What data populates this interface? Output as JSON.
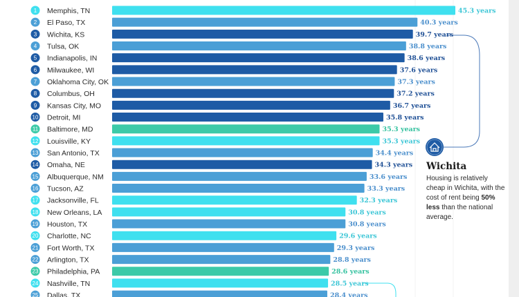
{
  "chart_data": {
    "type": "bar",
    "orientation": "horizontal",
    "value_suffix": " years",
    "colors": {
      "cyan": "#3fe0ef",
      "mid_blue": "#4b9fd6",
      "dark_blue": "#1e5ba5",
      "teal": "#3ccaa8"
    },
    "rows": [
      {
        "rank": "1",
        "city": "Memphis, TN",
        "value": 45.3,
        "label": "45.3 years",
        "color": "cyan"
      },
      {
        "rank": "2",
        "city": "El Paso, TX",
        "value": 40.3,
        "label": "40.3 years",
        "color": "mid_blue"
      },
      {
        "rank": "3",
        "city": "Wichita, KS",
        "value": 39.7,
        "label": "39.7 years",
        "color": "dark_blue"
      },
      {
        "rank": "4",
        "city": "Tulsa, OK",
        "value": 38.8,
        "label": "38.8 years",
        "color": "mid_blue"
      },
      {
        "rank": "5",
        "city": "Indianapolis, IN",
        "value": 38.6,
        "label": "38.6 years",
        "color": "dark_blue"
      },
      {
        "rank": "6",
        "city": "Milwaukee, WI",
        "value": 37.6,
        "label": "37.6 years",
        "color": "dark_blue"
      },
      {
        "rank": "7",
        "city": "Oklahoma City, OK",
        "value": 37.3,
        "label": "37.3 years",
        "color": "mid_blue"
      },
      {
        "rank": "8",
        "city": "Columbus, OH",
        "value": 37.2,
        "label": "37.2 years",
        "color": "dark_blue"
      },
      {
        "rank": "9",
        "city": "Kansas City, MO",
        "value": 36.7,
        "label": "36.7 years",
        "color": "dark_blue"
      },
      {
        "rank": "10",
        "city": "Detroit, MI",
        "value": 35.8,
        "label": "35.8 years",
        "color": "dark_blue"
      },
      {
        "rank": "11",
        "city": "Baltimore, MD",
        "value": 35.3,
        "label": "35.3 years",
        "color": "teal"
      },
      {
        "rank": "12",
        "city": "Louisville, KY",
        "value": 35.3,
        "label": "35.3 years",
        "color": "cyan"
      },
      {
        "rank": "13",
        "city": "San Antonio, TX",
        "value": 34.4,
        "label": "34.4 years",
        "color": "mid_blue"
      },
      {
        "rank": "14",
        "city": "Omaha, NE",
        "value": 34.3,
        "label": "34.3 years",
        "color": "dark_blue"
      },
      {
        "rank": "15",
        "city": "Albuquerque, NM",
        "value": 33.6,
        "label": "33.6 years",
        "color": "mid_blue"
      },
      {
        "rank": "16",
        "city": "Tucson, AZ",
        "value": 33.3,
        "label": "33.3 years",
        "color": "mid_blue"
      },
      {
        "rank": "17",
        "city": "Jacksonville, FL",
        "value": 32.3,
        "label": "32.3 years",
        "color": "cyan"
      },
      {
        "rank": "18",
        "city": "New Orleans, LA",
        "value": 30.8,
        "label": "30.8 years",
        "color": "cyan"
      },
      {
        "rank": "19",
        "city": "Houston, TX",
        "value": 30.8,
        "label": "30.8 years",
        "color": "mid_blue"
      },
      {
        "rank": "20",
        "city": "Charlotte, NC",
        "value": 29.6,
        "label": "29.6 years",
        "color": "cyan"
      },
      {
        "rank": "21",
        "city": "Fort Worth, TX",
        "value": 29.3,
        "label": "29.3 years",
        "color": "mid_blue"
      },
      {
        "rank": "22",
        "city": "Arlington, TX",
        "value": 28.8,
        "label": "28.8 years",
        "color": "mid_blue"
      },
      {
        "rank": "23",
        "city": "Philadelphia, PA",
        "value": 28.6,
        "label": "28.6 years",
        "color": "teal"
      },
      {
        "rank": "24",
        "city": "Nashville, TN",
        "value": 28.5,
        "label": "28.5 years",
        "color": "cyan"
      },
      {
        "rank": "25",
        "city": "Dallas, TX",
        "value": 28.4,
        "label": "28.4 years",
        "color": "mid_blue"
      }
    ]
  },
  "callout": {
    "icon": "house-icon",
    "title": "Wichita",
    "text_before": "Housing is relatively cheap in Wichita, with the cost of rent being ",
    "text_bold": "50% less",
    "text_after": " than the national average."
  }
}
